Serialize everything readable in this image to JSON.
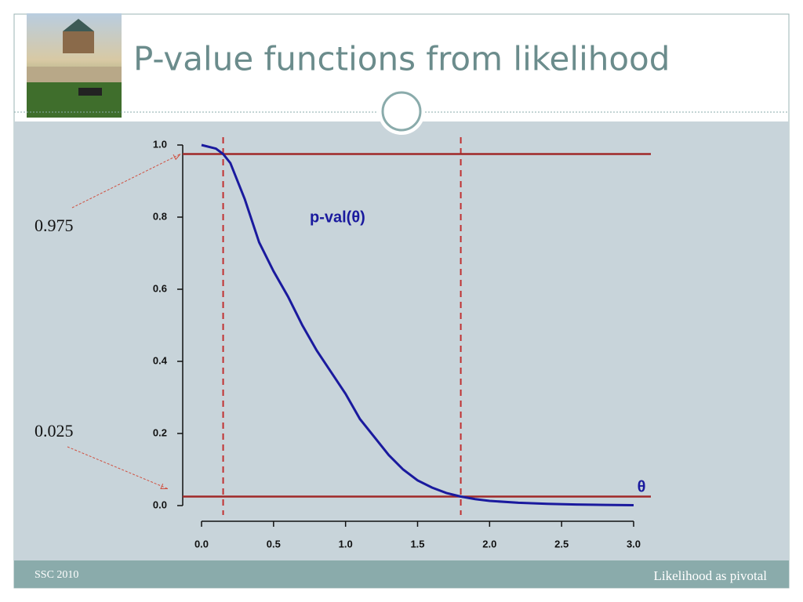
{
  "header": {
    "title": "P-value functions from likelihood"
  },
  "footer": {
    "left": "SSC  2010",
    "right": "Likelihood as pivotal"
  },
  "chart_data": {
    "type": "line",
    "x": [
      0,
      0.1,
      0.15,
      0.2,
      0.3,
      0.4,
      0.5,
      0.6,
      0.7,
      0.8,
      0.9,
      1.0,
      1.1,
      1.2,
      1.3,
      1.4,
      1.5,
      1.6,
      1.7,
      1.8,
      1.9,
      2.0,
      2.2,
      2.4,
      2.6,
      2.8,
      3.0
    ],
    "series": [
      {
        "name": "p-val(θ)",
        "color": "#1a1a9e",
        "values": [
          1.0,
          0.99,
          0.975,
          0.95,
          0.85,
          0.73,
          0.65,
          0.58,
          0.5,
          0.43,
          0.37,
          0.31,
          0.24,
          0.19,
          0.14,
          0.1,
          0.07,
          0.05,
          0.035,
          0.025,
          0.018,
          0.013,
          0.008,
          0.005,
          0.003,
          0.002,
          0.001
        ]
      }
    ],
    "xlabel": "θ",
    "xlim": [
      0,
      3
    ],
    "ylim": [
      0,
      1
    ],
    "xticks": [
      {
        "value": 0,
        "label": "0.0"
      },
      0.5,
      {
        "value": 1,
        "label": "1.0"
      },
      1.5,
      {
        "value": 2,
        "label": "2.0"
      },
      2.5,
      {
        "value": 3,
        "label": "3.0"
      }
    ],
    "yticks": [
      {
        "value": 0,
        "label": "0.0"
      },
      0.2,
      0.4,
      0.6,
      0.8,
      {
        "value": 1,
        "label": "1.0"
      }
    ],
    "hlines": [
      0.975,
      0.025
    ],
    "hline_color": "#a02828",
    "vlines": [
      0.15,
      1.8
    ],
    "vline_color": "#c03030"
  }
}
